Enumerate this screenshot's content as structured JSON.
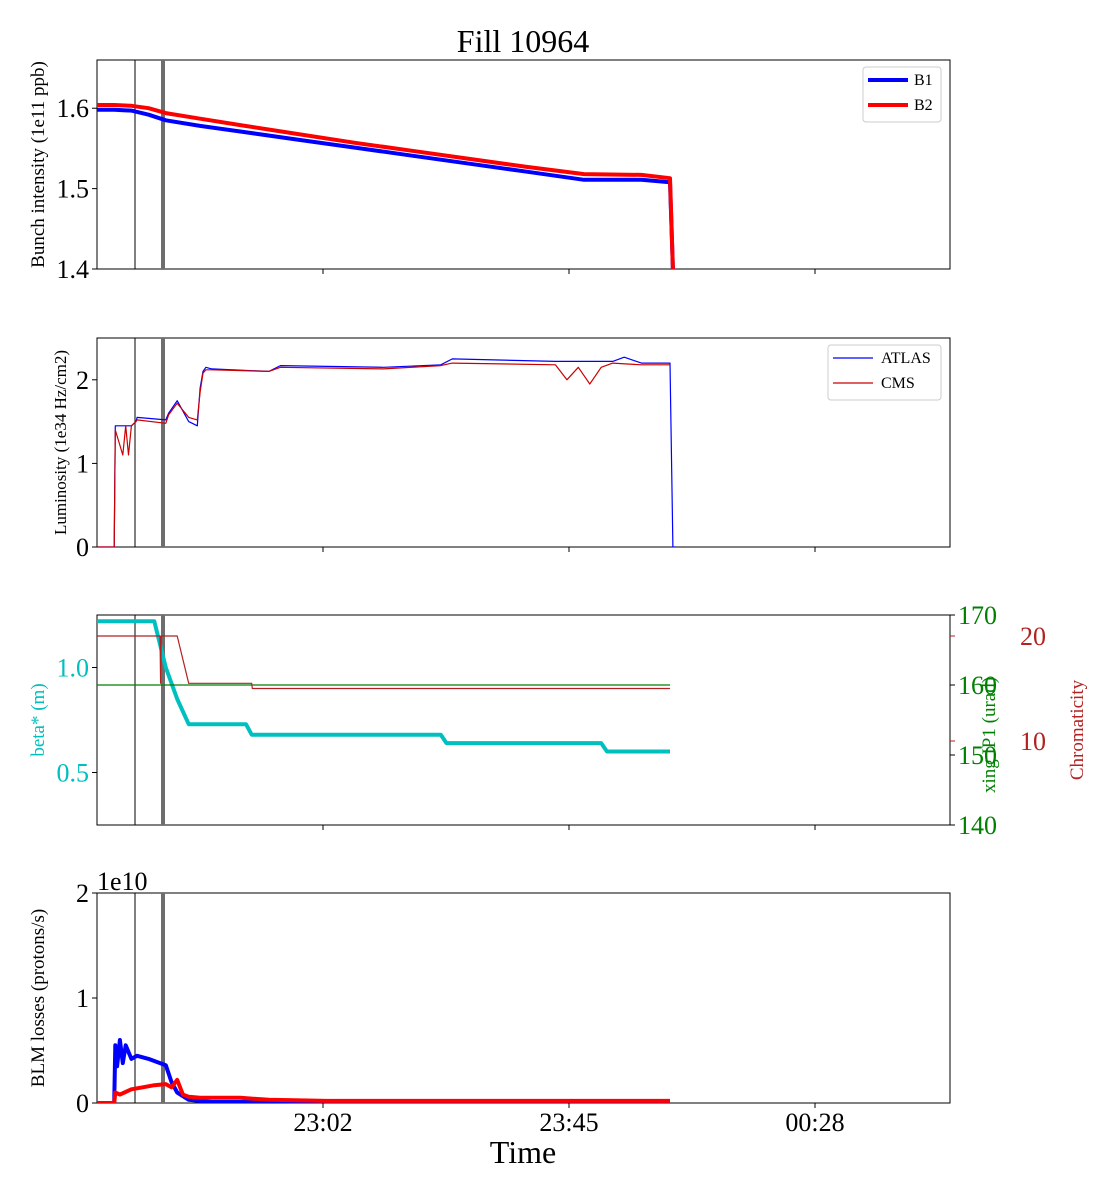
{
  "figure": {
    "title": "Fill 10964",
    "xlabel": "Time",
    "xticks": [
      "23:02",
      "23:45",
      "00:28"
    ]
  },
  "chart_data": [
    {
      "type": "line",
      "ylabel": "Bunch intensity (1e11 ppb)",
      "yticks": [
        "1.4",
        "1.5",
        "1.6"
      ],
      "ylim": [
        1.4,
        1.66
      ],
      "legend": "top-right",
      "series": [
        {
          "name": "B1",
          "color": "#0000ff",
          "x": [
            0,
            0.03,
            0.06,
            0.09,
            0.12,
            0.18,
            0.25,
            0.35,
            0.45,
            0.55,
            0.65,
            0.75,
            0.85,
            0.95,
            1.0,
            1.005
          ],
          "y": [
            1.598,
            1.598,
            1.597,
            1.592,
            1.585,
            1.578,
            1.571,
            1.561,
            1.551,
            1.541,
            1.531,
            1.521,
            1.511,
            1.511,
            1.508,
            1.4
          ]
        },
        {
          "name": "B2",
          "color": "#ff0000",
          "x": [
            0,
            0.03,
            0.06,
            0.09,
            0.12,
            0.18,
            0.25,
            0.35,
            0.45,
            0.55,
            0.65,
            0.75,
            0.85,
            0.95,
            1.0,
            1.005
          ],
          "y": [
            1.604,
            1.604,
            1.603,
            1.6,
            1.594,
            1.587,
            1.579,
            1.568,
            1.557,
            1.547,
            1.537,
            1.527,
            1.518,
            1.517,
            1.513,
            1.4
          ]
        }
      ]
    },
    {
      "type": "line",
      "ylabel": "Luminosity (1e34 Hz/cm2)",
      "yticks": [
        "0",
        "1",
        "2"
      ],
      "ylim": [
        0,
        2.5
      ],
      "legend": "top-right",
      "series": [
        {
          "name": "ATLAS",
          "color": "#0000ff",
          "x": [
            0,
            0.03,
            0.032,
            0.06,
            0.068,
            0.07,
            0.12,
            0.125,
            0.14,
            0.16,
            0.175,
            0.18,
            0.185,
            0.19,
            0.2,
            0.3,
            0.32,
            0.5,
            0.6,
            0.62,
            0.8,
            0.9,
            0.92,
            0.95,
            1.0,
            1.005,
            1.01
          ],
          "y": [
            0,
            0,
            1.45,
            1.45,
            1.5,
            1.55,
            1.52,
            1.6,
            1.75,
            1.5,
            1.45,
            1.9,
            2.1,
            2.15,
            2.13,
            2.1,
            2.17,
            2.15,
            2.18,
            2.25,
            2.22,
            2.22,
            2.27,
            2.2,
            2.2,
            0,
            0
          ]
        },
        {
          "name": "CMS",
          "color": "#cc0000",
          "x": [
            0,
            0.03,
            0.032,
            0.045,
            0.05,
            0.055,
            0.06,
            0.068,
            0.07,
            0.12,
            0.125,
            0.14,
            0.16,
            0.175,
            0.18,
            0.185,
            0.19,
            0.2,
            0.3,
            0.32,
            0.5,
            0.6,
            0.62,
            0.8,
            0.82,
            0.84,
            0.86,
            0.88,
            0.9,
            0.95,
            1.0
          ],
          "y": [
            0,
            0,
            1.4,
            1.1,
            1.45,
            1.1,
            1.45,
            1.5,
            1.52,
            1.48,
            1.58,
            1.72,
            1.55,
            1.52,
            1.85,
            2.08,
            2.12,
            2.12,
            2.1,
            2.15,
            2.13,
            2.17,
            2.2,
            2.18,
            2.0,
            2.15,
            1.95,
            2.15,
            2.2,
            2.18,
            2.18
          ]
        }
      ]
    },
    {
      "type": "line",
      "ylabel": "beta* (m)",
      "y2label": "xing IP1 (urad)",
      "y3label": "Chromaticity",
      "yticks": [
        "0.5",
        "1.0"
      ],
      "y2ticks": [
        "140",
        "150",
        "160",
        "170"
      ],
      "y3ticks": [
        "10",
        "20"
      ],
      "ylim": [
        0.25,
        1.25
      ],
      "y2lim": [
        140,
        170
      ],
      "y3lim": [
        2,
        22
      ],
      "colors": {
        "beta": "#00bfbf",
        "xing": "#008000",
        "chroma": "#b22222"
      },
      "series": [
        {
          "name": "beta",
          "axis": "left",
          "x": [
            0,
            0.1,
            0.12,
            0.14,
            0.16,
            0.26,
            0.27,
            0.6,
            0.61,
            0.88,
            0.89,
            1.0
          ],
          "y": [
            1.22,
            1.22,
            1.0,
            0.85,
            0.73,
            0.73,
            0.68,
            0.68,
            0.64,
            0.64,
            0.6,
            0.6
          ]
        },
        {
          "name": "xing",
          "axis": "right",
          "x": [
            0,
            1.0
          ],
          "y": [
            160,
            160
          ]
        },
        {
          "name": "chroma",
          "axis": "far-right",
          "x": [
            0,
            0.11,
            0.111,
            0.112,
            0.14,
            0.16,
            0.27,
            0.271,
            1.0
          ],
          "y": [
            20,
            20,
            15.5,
            20,
            20,
            15.5,
            15.5,
            15,
            15
          ]
        }
      ]
    },
    {
      "type": "line",
      "ylabel": "BLM losses (protons/s)",
      "yticks": [
        "0",
        "1",
        "2"
      ],
      "ylim": [
        0,
        2
      ],
      "offset_label": "1e10",
      "series": [
        {
          "name": "B1 losses",
          "color": "#0000ff",
          "x": [
            0,
            0.03,
            0.032,
            0.035,
            0.04,
            0.045,
            0.05,
            0.06,
            0.07,
            0.09,
            0.1,
            0.11,
            0.12,
            0.13,
            0.14,
            0.16,
            0.18,
            0.2,
            0.3,
            1.0
          ],
          "y": [
            0,
            0,
            0.55,
            0.35,
            0.6,
            0.38,
            0.55,
            0.42,
            0.45,
            0.42,
            0.4,
            0.38,
            0.36,
            0.2,
            0.1,
            0.03,
            0.02,
            0.01,
            0.01,
            0.01
          ]
        },
        {
          "name": "B2 losses",
          "color": "#ff0000",
          "x": [
            0,
            0.03,
            0.032,
            0.04,
            0.06,
            0.08,
            0.1,
            0.12,
            0.13,
            0.14,
            0.15,
            0.16,
            0.18,
            0.25,
            0.3,
            0.4,
            1.0
          ],
          "y": [
            0,
            0,
            0.1,
            0.08,
            0.13,
            0.15,
            0.17,
            0.18,
            0.15,
            0.22,
            0.08,
            0.06,
            0.05,
            0.05,
            0.03,
            0.02,
            0.02
          ]
        }
      ]
    }
  ]
}
